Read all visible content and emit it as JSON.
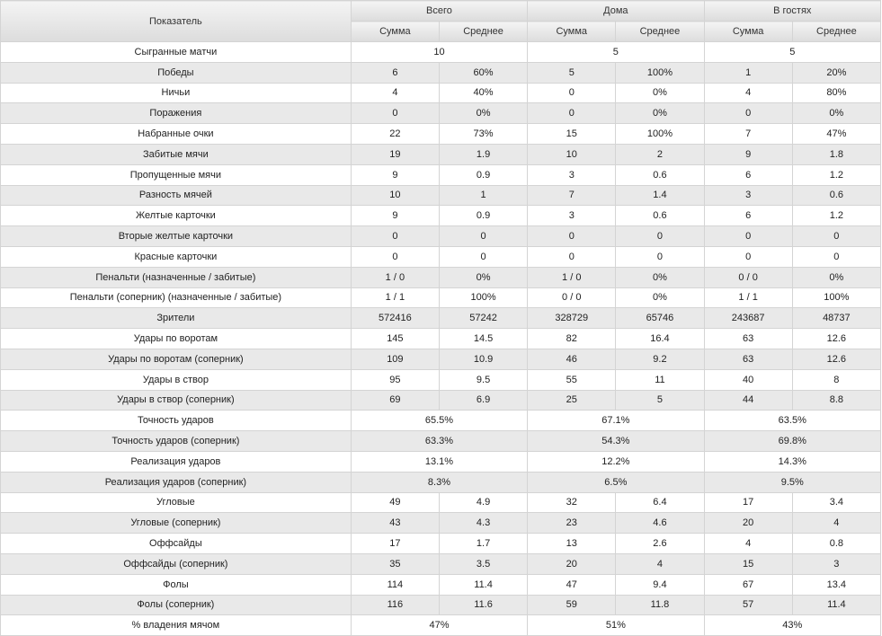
{
  "header": {
    "indicator": "Показатель",
    "groups": [
      "Всего",
      "Дома",
      "В гостях"
    ],
    "sum_label": "Сумма",
    "avg_label": "Среднее"
  },
  "rows": [
    {
      "label": "Сыгранные матчи",
      "merged": [
        "10",
        "5",
        "5"
      ]
    },
    {
      "label": "Победы",
      "values": [
        "6",
        "60%",
        "5",
        "100%",
        "1",
        "20%"
      ]
    },
    {
      "label": "Ничьи",
      "values": [
        "4",
        "40%",
        "0",
        "0%",
        "4",
        "80%"
      ]
    },
    {
      "label": "Поражения",
      "values": [
        "0",
        "0%",
        "0",
        "0%",
        "0",
        "0%"
      ]
    },
    {
      "label": "Набранные очки",
      "values": [
        "22",
        "73%",
        "15",
        "100%",
        "7",
        "47%"
      ]
    },
    {
      "label": "Забитые мячи",
      "values": [
        "19",
        "1.9",
        "10",
        "2",
        "9",
        "1.8"
      ]
    },
    {
      "label": "Пропущенные мячи",
      "values": [
        "9",
        "0.9",
        "3",
        "0.6",
        "6",
        "1.2"
      ]
    },
    {
      "label": "Разность мячей",
      "values": [
        "10",
        "1",
        "7",
        "1.4",
        "3",
        "0.6"
      ]
    },
    {
      "label": "Желтые карточки",
      "values": [
        "9",
        "0.9",
        "3",
        "0.6",
        "6",
        "1.2"
      ]
    },
    {
      "label": "Вторые желтые карточки",
      "values": [
        "0",
        "0",
        "0",
        "0",
        "0",
        "0"
      ]
    },
    {
      "label": "Красные карточки",
      "values": [
        "0",
        "0",
        "0",
        "0",
        "0",
        "0"
      ]
    },
    {
      "label": "Пенальти (назначенные / забитые)",
      "values": [
        "1 / 0",
        "0%",
        "1 / 0",
        "0%",
        "0 / 0",
        "0%"
      ]
    },
    {
      "label": "Пенальти (соперник) (назначенные / забитые)",
      "values": [
        "1 / 1",
        "100%",
        "0 / 0",
        "0%",
        "1 / 1",
        "100%"
      ]
    },
    {
      "label": "Зрители",
      "values": [
        "572416",
        "57242",
        "328729",
        "65746",
        "243687",
        "48737"
      ]
    },
    {
      "label": "Удары по воротам",
      "values": [
        "145",
        "14.5",
        "82",
        "16.4",
        "63",
        "12.6"
      ]
    },
    {
      "label": "Удары по воротам (соперник)",
      "values": [
        "109",
        "10.9",
        "46",
        "9.2",
        "63",
        "12.6"
      ]
    },
    {
      "label": "Удары в створ",
      "values": [
        "95",
        "9.5",
        "55",
        "11",
        "40",
        "8"
      ]
    },
    {
      "label": "Удары в створ (соперник)",
      "values": [
        "69",
        "6.9",
        "25",
        "5",
        "44",
        "8.8"
      ]
    },
    {
      "label": "Точность ударов",
      "merged": [
        "65.5%",
        "67.1%",
        "63.5%"
      ]
    },
    {
      "label": "Точность ударов (соперник)",
      "merged": [
        "63.3%",
        "54.3%",
        "69.8%"
      ]
    },
    {
      "label": "Реализация ударов",
      "merged": [
        "13.1%",
        "12.2%",
        "14.3%"
      ]
    },
    {
      "label": "Реализация ударов (соперник)",
      "merged": [
        "8.3%",
        "6.5%",
        "9.5%"
      ]
    },
    {
      "label": "Угловые",
      "values": [
        "49",
        "4.9",
        "32",
        "6.4",
        "17",
        "3.4"
      ]
    },
    {
      "label": "Угловые (соперник)",
      "values": [
        "43",
        "4.3",
        "23",
        "4.6",
        "20",
        "4"
      ]
    },
    {
      "label": "Оффсайды",
      "values": [
        "17",
        "1.7",
        "13",
        "2.6",
        "4",
        "0.8"
      ]
    },
    {
      "label": "Оффсайды (соперник)",
      "values": [
        "35",
        "3.5",
        "20",
        "4",
        "15",
        "3"
      ]
    },
    {
      "label": "Фолы",
      "values": [
        "114",
        "11.4",
        "47",
        "9.4",
        "67",
        "13.4"
      ]
    },
    {
      "label": "Фолы (соперник)",
      "values": [
        "116",
        "11.6",
        "59",
        "11.8",
        "57",
        "11.4"
      ]
    },
    {
      "label": "% владения мячом",
      "merged": [
        "47%",
        "51%",
        "43%"
      ]
    }
  ]
}
